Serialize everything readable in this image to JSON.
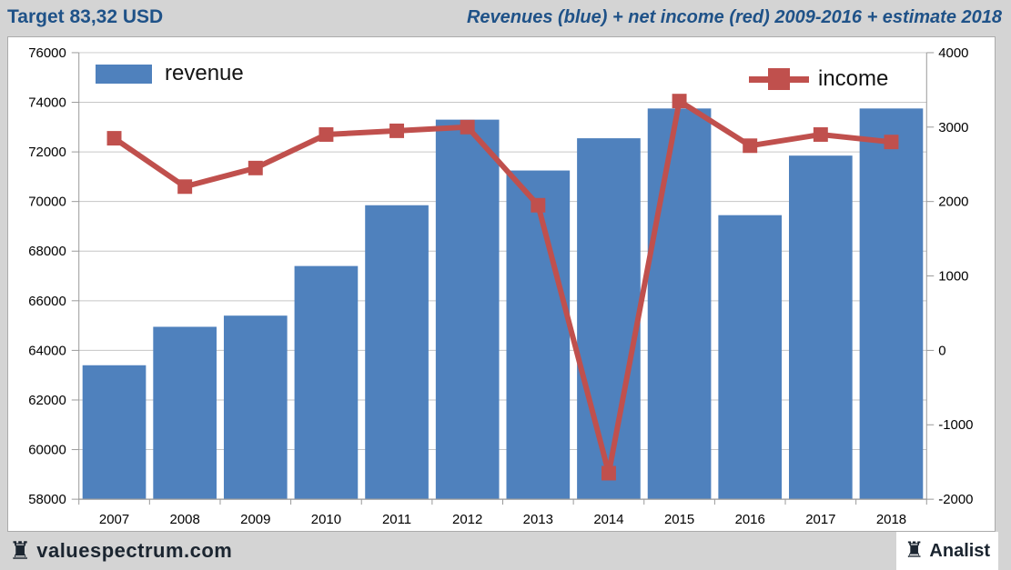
{
  "header": {
    "left_title": "Target 83,32 USD",
    "right_title": "Revenues (blue) + net income (red) 2009-2016 + estimate 2018"
  },
  "footer": {
    "brand": "valuespectrum.com",
    "analyst_label": "Analist",
    "rook_icon": "♜"
  },
  "colors": {
    "bar_blue": "#4F81BD",
    "line_red": "#C0504D",
    "header_text": "#1F5288",
    "band_bg": "#D4D4D4",
    "plot_bg": "#FFFFFF",
    "grid": "#C6C6C6",
    "axis_line": "#9A9A9A",
    "axis_text": "#000000",
    "footer_text": "#1B2530"
  },
  "chart_data": {
    "type": "bar",
    "subtype": "bar+line dual axis",
    "title": "Revenues (blue) + net income (red) 2009-2016 + estimate 2018",
    "xlabel": "",
    "ylabel": "",
    "categories": [
      "2007",
      "2008",
      "2009",
      "2010",
      "2011",
      "2012",
      "2013",
      "2014",
      "2015",
      "2016",
      "2017",
      "2018"
    ],
    "series": [
      {
        "name": "revenue",
        "type": "bar",
        "axis": "left",
        "color": "#4F81BD",
        "values": [
          63400,
          64950,
          65400,
          67400,
          69850,
          73300,
          71250,
          72550,
          73750,
          69450,
          71850,
          73750
        ]
      },
      {
        "name": "income",
        "type": "line",
        "axis": "right",
        "color": "#C0504D",
        "marker": "square",
        "values": [
          2850,
          2200,
          2450,
          2900,
          2950,
          3000,
          1950,
          -1650,
          3350,
          2750,
          2900,
          2800
        ]
      }
    ],
    "left_axis": {
      "min": 58000,
      "max": 76000,
      "step": 2000,
      "ticks": [
        "76000",
        "74000",
        "72000",
        "70000",
        "68000",
        "66000",
        "64000",
        "62000",
        "60000",
        "58000"
      ]
    },
    "right_axis": {
      "min": -2000,
      "max": 4000,
      "step": 1000,
      "ticks": [
        "4000",
        "3000",
        "2000",
        "1000",
        "0",
        "-1000",
        "-2000"
      ]
    },
    "grid": true,
    "legend_position": "top-inside"
  }
}
